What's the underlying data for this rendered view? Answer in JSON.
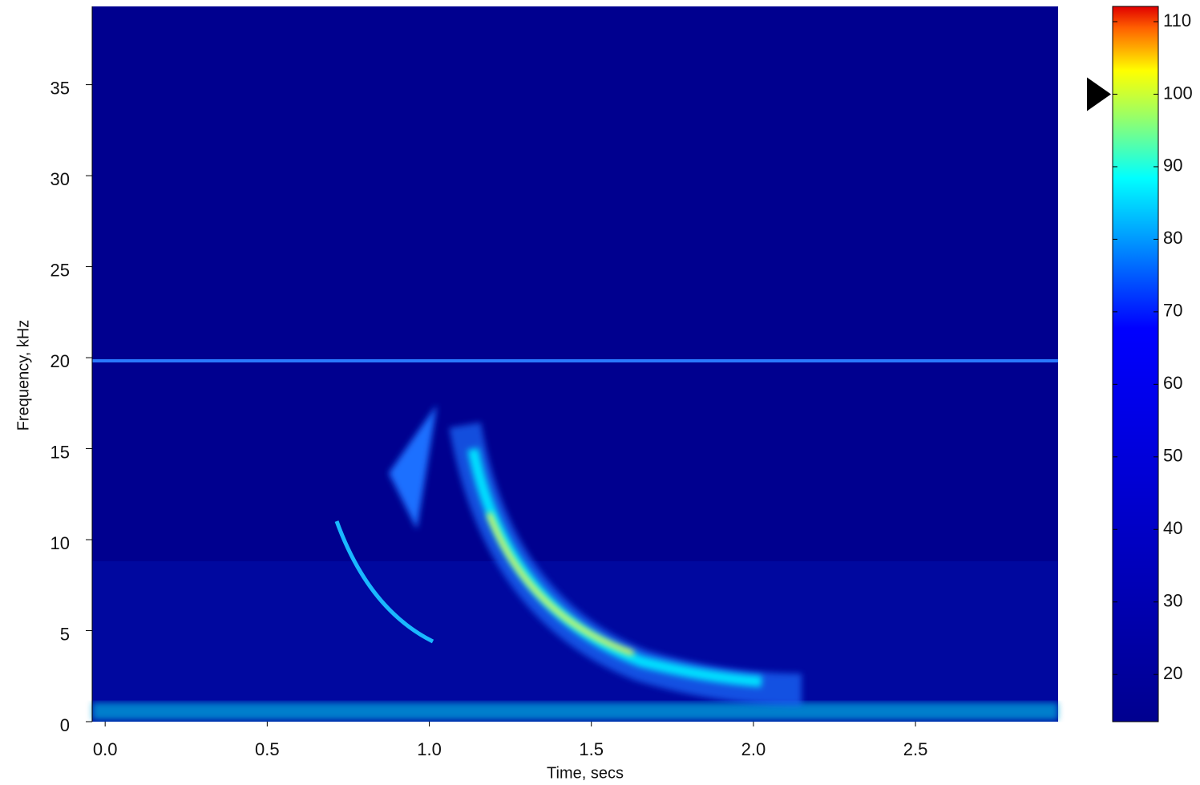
{
  "chart_data": {
    "type": "spectrogram",
    "x_label": "Time, secs",
    "y_label": "Frequency, kHz",
    "xlim": [
      -0.04,
      2.94
    ],
    "xticks": [
      {
        "value": 0,
        "label": "0.0"
      },
      0.5,
      {
        "value": 1,
        "label": "1.0"
      },
      1.5,
      {
        "value": 2,
        "label": "2.0"
      },
      2.5
    ],
    "ylim": [
      0,
      39.3
    ],
    "yticks": [
      0,
      5,
      10,
      15,
      20,
      25,
      30,
      35
    ],
    "colorbar": {
      "colormap": "jet",
      "lim": [
        13.5,
        112.1
      ],
      "ticks": [
        20,
        30,
        40,
        50,
        60,
        70,
        80,
        90,
        100,
        110
      ],
      "marker": 100
    }
  }
}
